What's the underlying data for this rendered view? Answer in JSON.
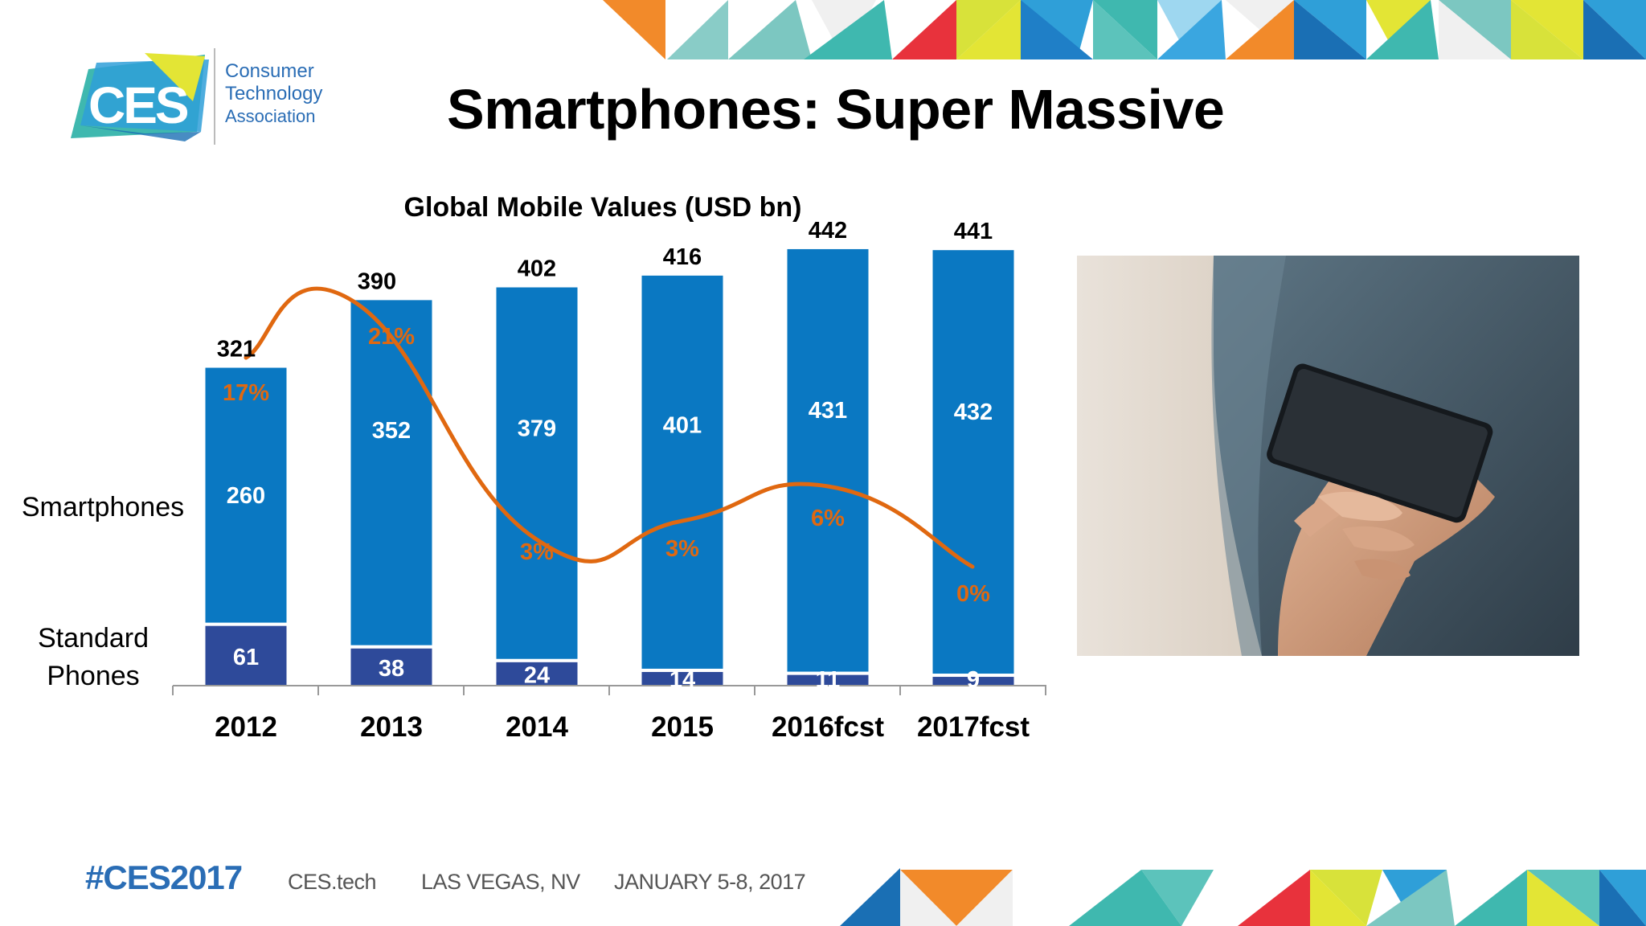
{
  "header": {
    "logo": {
      "mark": "CES",
      "line1": "Consumer",
      "line2": "Technology",
      "line3": "Association"
    },
    "title": "Smartphones: Super Massive"
  },
  "chart_data": {
    "type": "bar",
    "stacked": true,
    "title": "Global Mobile Values (USD bn)",
    "categories": [
      "2012",
      "2013",
      "2014",
      "2015",
      "2016fcst",
      "2017fcst"
    ],
    "series": [
      {
        "name": "Standard Phones",
        "label_lines": [
          "Standard",
          "Phones"
        ],
        "values": [
          61,
          38,
          24,
          14,
          11,
          9
        ],
        "color": "#2e4a9a"
      },
      {
        "name": "Smartphones",
        "values": [
          260,
          352,
          379,
          401,
          431,
          432
        ],
        "color": "#0a78c2"
      }
    ],
    "totals": [
      321,
      390,
      402,
      416,
      442,
      441
    ],
    "growth": {
      "values": [
        "17%",
        "21%",
        "3%",
        "3%",
        "6%",
        "0%"
      ],
      "numeric": [
        17,
        21,
        3,
        3,
        6,
        0
      ],
      "color": "#e06810"
    },
    "ylim": [
      0,
      460
    ],
    "grid": false,
    "legend": "left"
  },
  "footer": {
    "hashtag": "#CES2017",
    "site": "CES.tech",
    "location": "LAS VEGAS, NV",
    "dates": "JANUARY 5-8, 2017"
  },
  "colors": {
    "title": "#000000",
    "accent_blue": "#2a6db5",
    "bar_smartphone": "#0a78c2",
    "bar_standard": "#2e4a9a",
    "growth_line": "#e06810"
  }
}
